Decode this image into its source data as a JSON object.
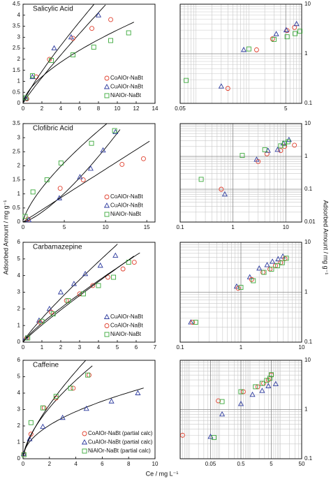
{
  "y_label": "Adsorbed Amount / mg g⁻¹",
  "y2_label": "Adsorbed Amount / mg g⁻¹",
  "x_label": "Ce / mg L⁻¹",
  "chart_data": [
    {
      "type": "scatter",
      "title": "Salicylic Acid",
      "xlim": [
        0,
        14
      ],
      "xticks": [
        0,
        2,
        4,
        6,
        8,
        10,
        12,
        14
      ],
      "ylim": [
        0,
        4.5
      ],
      "yticks": [
        0,
        0.5,
        1,
        1.5,
        2,
        2.5,
        3,
        3.5,
        4,
        4.5
      ],
      "fit": true,
      "legend": "lower right",
      "series": [
        {
          "name": "CoAlOr-NaBt",
          "color": "#e0402e",
          "marker": "circle",
          "x": [
            0.4,
            1.4,
            2.8,
            5.3,
            7.3,
            9.3
          ],
          "values": [
            0.2,
            1.2,
            2.0,
            2.95,
            3.4,
            3.8
          ]
        },
        {
          "name": "CuAlOr-NaBt",
          "color": "#2c3a9e",
          "marker": "triangle",
          "x": [
            0.3,
            1.0,
            3.3,
            5.1,
            8.0
          ],
          "values": [
            0.22,
            1.2,
            2.5,
            3.0,
            4.0
          ]
        },
        {
          "name": "NiAlOr-NaBt",
          "color": "#3aa83a",
          "marker": "square",
          "x": [
            0.3,
            1.0,
            3.0,
            5.3,
            7.5,
            9.3,
            11.2
          ],
          "values": [
            0.25,
            1.25,
            1.95,
            2.2,
            2.55,
            2.85,
            3.2
          ]
        }
      ]
    },
    {
      "type": "scatter",
      "xscale": "log",
      "yscale": "log",
      "grid": true,
      "xlim": [
        0.05,
        10
      ],
      "xticks": [
        0.05,
        5
      ],
      "xminor": [
        0.06,
        0.07,
        0.08,
        0.09,
        0.1,
        0.2,
        0.3,
        0.4,
        0.5,
        0.6,
        0.7,
        0.8,
        0.9,
        1,
        2,
        3,
        4,
        6,
        7,
        8,
        9
      ],
      "ylim": [
        0.1,
        10
      ],
      "yticks": [
        0.1,
        1,
        10
      ],
      "yminor": [
        0.2,
        0.3,
        0.4,
        0.5,
        0.6,
        0.7,
        0.8,
        0.9,
        2,
        3,
        4,
        5,
        6,
        7,
        8,
        9
      ],
      "series": [
        {
          "color": "#e0402e",
          "marker": "circle",
          "x": [
            0.4,
            1.4,
            2.8,
            5.3,
            7.3
          ],
          "values": [
            0.2,
            1.2,
            2.0,
            2.95,
            3.4
          ]
        },
        {
          "color": "#2c3a9e",
          "marker": "triangle",
          "x": [
            0.3,
            0.8,
            3.3,
            5.1,
            8.0
          ],
          "values": [
            0.22,
            1.2,
            2.5,
            3.0,
            4.0
          ]
        },
        {
          "color": "#3aa83a",
          "marker": "square",
          "x": [
            0.065,
            1.0,
            3.0,
            5.3,
            7.5,
            9.3
          ],
          "values": [
            0.29,
            1.25,
            1.95,
            2.2,
            2.55,
            2.85
          ]
        }
      ]
    },
    {
      "type": "scatter",
      "title": "Clofibric Acid",
      "xlim": [
        0,
        16
      ],
      "xticks": [
        0,
        5,
        10,
        15
      ],
      "ylim": [
        0,
        3.5
      ],
      "yticks": [
        0,
        0.5,
        1,
        1.5,
        2,
        2.5,
        3,
        3.5
      ],
      "fit": true,
      "legend": "lower right",
      "series": [
        {
          "name": "CoAlOr-NaBt",
          "color": "#e0402e",
          "marker": "circle",
          "x": [
            0.6,
            4.5,
            7.3,
            12.0,
            14.6
          ],
          "values": [
            0.1,
            1.2,
            1.5,
            2.05,
            2.25
          ]
        },
        {
          "name": "CuAlOr-NaBt",
          "color": "#2c3a9e",
          "marker": "triangle",
          "x": [
            0.7,
            4.4,
            6.9,
            8.2,
            9.7,
            11.2
          ],
          "values": [
            0.07,
            0.85,
            1.6,
            1.9,
            2.55,
            3.2
          ]
        },
        {
          "name": "NiAlOr-NaBt",
          "color": "#3aa83a",
          "marker": "square",
          "x": [
            0.25,
            1.2,
            2.9,
            4.6,
            8.3,
            11.1
          ],
          "values": [
            0.2,
            1.07,
            1.5,
            2.1,
            2.8,
            3.25
          ]
        }
      ]
    },
    {
      "type": "scatter",
      "xscale": "log",
      "yscale": "log",
      "grid": true,
      "xlim": [
        0.1,
        20
      ],
      "xticks": [
        0.1,
        1,
        10
      ],
      "xminor": [
        0.2,
        0.3,
        0.4,
        0.5,
        0.6,
        0.7,
        0.8,
        0.9,
        2,
        3,
        4,
        5,
        6,
        7,
        8,
        9,
        20
      ],
      "ylim": [
        0.01,
        10
      ],
      "yticks": [
        0.01,
        0.1,
        1,
        10
      ],
      "yminor": [
        0.02,
        0.03,
        0.04,
        0.05,
        0.06,
        0.07,
        0.08,
        0.09,
        0.2,
        0.3,
        0.4,
        0.5,
        0.6,
        0.7,
        0.8,
        0.9,
        2,
        3,
        4,
        5,
        6,
        7,
        8,
        9
      ],
      "series": [
        {
          "color": "#e0402e",
          "marker": "circle",
          "x": [
            0.6,
            3.0,
            4.4,
            8.0,
            9.5,
            14.6
          ],
          "values": [
            0.1,
            0.7,
            1.2,
            1.5,
            2.0,
            2.2
          ]
        },
        {
          "color": "#2c3a9e",
          "marker": "triangle",
          "x": [
            0.7,
            2.8,
            4.6,
            7.0,
            9.0,
            11.5
          ],
          "values": [
            0.07,
            0.8,
            1.5,
            1.6,
            2.5,
            3.2
          ]
        },
        {
          "color": "#3aa83a",
          "marker": "square",
          "x": [
            0.25,
            1.5,
            4.0,
            8.0,
            9.5,
            11.0
          ],
          "values": [
            0.2,
            1.07,
            1.6,
            2.1,
            2.5,
            2.8
          ]
        }
      ]
    },
    {
      "type": "scatter",
      "title": "Carbamazepine",
      "xlim": [
        0,
        7
      ],
      "xticks": [
        0,
        1,
        2,
        3,
        4,
        5,
        6,
        7
      ],
      "ylim": [
        0,
        6
      ],
      "yticks": [
        0,
        1,
        2,
        3,
        4,
        5,
        6
      ],
      "fit": true,
      "legend": "lower right",
      "series": [
        {
          "name": "CuAlOr-NaBt",
          "color": "#2c3a9e",
          "marker": "triangle",
          "x": [
            0.15,
            0.85,
            1.4,
            2.0,
            2.7,
            3.3,
            4.1,
            4.9
          ],
          "values": [
            0.25,
            1.3,
            2.0,
            3.0,
            3.5,
            4.1,
            4.6,
            5.2
          ]
        },
        {
          "name": "CoAlOr-NaBt",
          "color": "#e0402e",
          "marker": "circle",
          "x": [
            0.2,
            0.9,
            1.5,
            2.3,
            3.0,
            3.7,
            4.5,
            5.3,
            5.9
          ],
          "values": [
            0.25,
            1.2,
            1.8,
            2.5,
            2.9,
            3.4,
            3.9,
            4.4,
            4.8
          ]
        },
        {
          "name": "NiAlOr-NaBt",
          "color": "#3aa83a",
          "marker": "square",
          "x": [
            0.25,
            1.0,
            1.6,
            2.4,
            3.2,
            4.0,
            4.8,
            5.6
          ],
          "values": [
            0.25,
            1.25,
            1.7,
            2.5,
            2.9,
            3.4,
            3.9,
            4.8
          ]
        }
      ]
    },
    {
      "type": "scatter",
      "xscale": "log",
      "yscale": "log",
      "grid": true,
      "xlim": [
        0.1,
        10
      ],
      "xticks": [
        0.1,
        1,
        10
      ],
      "xminor": [
        0.2,
        0.3,
        0.4,
        0.5,
        0.6,
        0.7,
        0.8,
        0.9,
        2,
        3,
        4,
        5,
        6,
        7,
        8,
        9
      ],
      "ylim": [
        0.1,
        10
      ],
      "yticks": [
        0.1,
        1,
        10
      ],
      "yminor": [
        0.2,
        0.3,
        0.4,
        0.5,
        0.6,
        0.7,
        0.8,
        0.9,
        2,
        3,
        4,
        5,
        6,
        7,
        8,
        9
      ],
      "series": [
        {
          "color": "#2c3a9e",
          "marker": "triangle",
          "x": [
            0.15,
            0.85,
            1.4,
            2.0,
            2.7,
            3.3,
            4.1,
            4.9
          ],
          "values": [
            0.25,
            1.3,
            2.0,
            3.0,
            3.5,
            4.1,
            4.6,
            5.2
          ]
        },
        {
          "color": "#e0402e",
          "marker": "circle",
          "x": [
            0.16,
            0.9,
            1.5,
            2.3,
            3.0,
            3.7,
            4.5,
            5.3
          ],
          "values": [
            0.25,
            1.2,
            1.8,
            2.5,
            2.9,
            3.4,
            3.9,
            4.7
          ]
        },
        {
          "color": "#3aa83a",
          "marker": "square",
          "x": [
            0.18,
            1.0,
            1.6,
            2.4,
            3.2,
            4.0,
            4.8,
            5.6
          ],
          "values": [
            0.25,
            1.25,
            1.7,
            2.5,
            2.9,
            3.4,
            3.9,
            4.8
          ]
        }
      ]
    },
    {
      "type": "scatter",
      "title": "Caffeine",
      "xlim": [
        0,
        10
      ],
      "xticks": [
        0,
        2,
        4,
        6,
        8,
        10
      ],
      "ylim": [
        0,
        6
      ],
      "yticks": [
        0,
        1,
        2,
        3,
        4,
        5,
        6
      ],
      "fit": true,
      "legend": "lower center",
      "series": [
        {
          "name": "CoAlOr-NaBt (partial calc)",
          "color": "#e0402e",
          "marker": "circle",
          "x": [
            0.05,
            0.6,
            1.6,
            2.5,
            3.8,
            5.0
          ],
          "values": [
            0.3,
            1.5,
            3.1,
            3.7,
            4.3,
            5.1
          ]
        },
        {
          "name": "CuAlOr-NaBt (partial calc)",
          "color": "#2c3a9e",
          "marker": "triangle",
          "x": [
            0.05,
            0.5,
            1.5,
            3.0,
            4.8,
            6.7,
            8.7
          ],
          "values": [
            0.3,
            1.2,
            1.95,
            2.5,
            3.05,
            3.5,
            4.0
          ]
        },
        {
          "name": "NiAlOr-NaBt (partial calc)",
          "color": "#3aa83a",
          "marker": "square",
          "x": [
            0.07,
            0.6,
            1.5,
            2.5,
            3.6,
            4.9
          ],
          "values": [
            0.25,
            2.2,
            3.1,
            3.8,
            4.3,
            5.1
          ]
        }
      ]
    },
    {
      "type": "scatter",
      "xscale": "log",
      "yscale": "log",
      "grid": true,
      "xlim": [
        0.005,
        50
      ],
      "xticks": [
        0.05,
        0.5,
        5,
        50
      ],
      "xminor": [
        0.006,
        0.007,
        0.008,
        0.009,
        0.01,
        0.02,
        0.03,
        0.04,
        0.06,
        0.07,
        0.08,
        0.09,
        0.1,
        0.2,
        0.3,
        0.4,
        0.6,
        0.7,
        0.8,
        0.9,
        1,
        2,
        3,
        4,
        6,
        7,
        8,
        9,
        10,
        20,
        30,
        40
      ],
      "ylim": [
        0.1,
        10
      ],
      "yticks": [
        0.1,
        1,
        10
      ],
      "yminor": [
        0.2,
        0.3,
        0.4,
        0.5,
        0.6,
        0.7,
        0.8,
        0.9,
        2,
        3,
        4,
        5,
        6,
        7,
        8,
        9
      ],
      "series": [
        {
          "color": "#e0402e",
          "marker": "circle",
          "x": [
            0.006,
            0.09,
            0.6,
            1.8,
            2.8,
            4.0,
            5.0
          ],
          "values": [
            0.3,
            1.5,
            2.3,
            2.9,
            3.4,
            4.0,
            5.0
          ]
        },
        {
          "color": "#2c3a9e",
          "marker": "triangle",
          "x": [
            0.05,
            0.12,
            0.5,
            1.2,
            2.5,
            4.0,
            7.0
          ],
          "values": [
            0.28,
            0.8,
            1.3,
            2.0,
            2.4,
            3.0,
            3.3
          ]
        },
        {
          "color": "#3aa83a",
          "marker": "square",
          "x": [
            0.065,
            0.12,
            0.5,
            1.5,
            2.5,
            3.5,
            4.5,
            5.0
          ],
          "values": [
            0.27,
            1.45,
            2.3,
            2.9,
            3.4,
            3.9,
            4.3,
            5.1
          ]
        }
      ]
    }
  ]
}
